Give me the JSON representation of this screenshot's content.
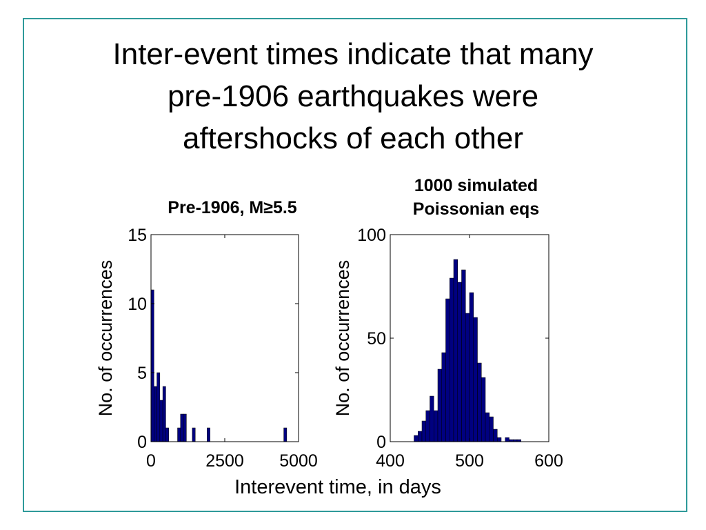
{
  "slide": {
    "title_lines": [
      "Inter-event times indicate that many",
      "pre-1906 earthquakes were",
      "aftershocks of each other"
    ],
    "shared_xlabel": "Interevent time, in days",
    "colors": {
      "frame": "#2e9a9a",
      "bars": "#000080"
    }
  },
  "chart_data": [
    {
      "type": "bar",
      "title": "Pre-1906, M≥5.5",
      "xlabel": "Interevent time, in days",
      "ylabel": "No. of occurrences",
      "xlim": [
        0,
        5000
      ],
      "ylim": [
        0,
        15
      ],
      "xticks": [
        0,
        2500,
        5000
      ],
      "yticks": [
        0,
        5,
        10,
        15
      ],
      "bin_width": 100,
      "bins": [
        {
          "x": 50,
          "value": 11
        },
        {
          "x": 150,
          "value": 4
        },
        {
          "x": 250,
          "value": 5
        },
        {
          "x": 350,
          "value": 3
        },
        {
          "x": 450,
          "value": 4
        },
        {
          "x": 550,
          "value": 1
        },
        {
          "x": 950,
          "value": 1
        },
        {
          "x": 1050,
          "value": 2
        },
        {
          "x": 1150,
          "value": 2
        },
        {
          "x": 1450,
          "value": 1
        },
        {
          "x": 1950,
          "value": 1
        },
        {
          "x": 4550,
          "value": 1
        }
      ]
    },
    {
      "type": "bar",
      "title": "1000 simulated Poissonian eqs",
      "xlabel": "Interevent time, in days",
      "ylabel": "No. of occurrences",
      "xlim": [
        400,
        600
      ],
      "ylim": [
        0,
        100
      ],
      "xticks": [
        400,
        500,
        600
      ],
      "yticks": [
        0,
        50,
        100
      ],
      "bin_width": 5,
      "bins": [
        {
          "x": 432.5,
          "value": 3
        },
        {
          "x": 437.5,
          "value": 5
        },
        {
          "x": 442.5,
          "value": 10
        },
        {
          "x": 447.5,
          "value": 15
        },
        {
          "x": 452.5,
          "value": 22
        },
        {
          "x": 457.5,
          "value": 15
        },
        {
          "x": 462.5,
          "value": 35
        },
        {
          "x": 467.5,
          "value": 43
        },
        {
          "x": 472.5,
          "value": 69
        },
        {
          "x": 477.5,
          "value": 79
        },
        {
          "x": 482.5,
          "value": 88
        },
        {
          "x": 487.5,
          "value": 77
        },
        {
          "x": 492.5,
          "value": 83
        },
        {
          "x": 497.5,
          "value": 62
        },
        {
          "x": 502.5,
          "value": 72
        },
        {
          "x": 507.5,
          "value": 60
        },
        {
          "x": 512.5,
          "value": 38
        },
        {
          "x": 517.5,
          "value": 31
        },
        {
          "x": 522.5,
          "value": 14
        },
        {
          "x": 527.5,
          "value": 12
        },
        {
          "x": 532.5,
          "value": 6
        },
        {
          "x": 537.5,
          "value": 2
        },
        {
          "x": 542.5,
          "value": 0
        },
        {
          "x": 547.5,
          "value": 2
        },
        {
          "x": 552.5,
          "value": 1
        },
        {
          "x": 557.5,
          "value": 1
        },
        {
          "x": 562.5,
          "value": 1
        }
      ]
    }
  ]
}
